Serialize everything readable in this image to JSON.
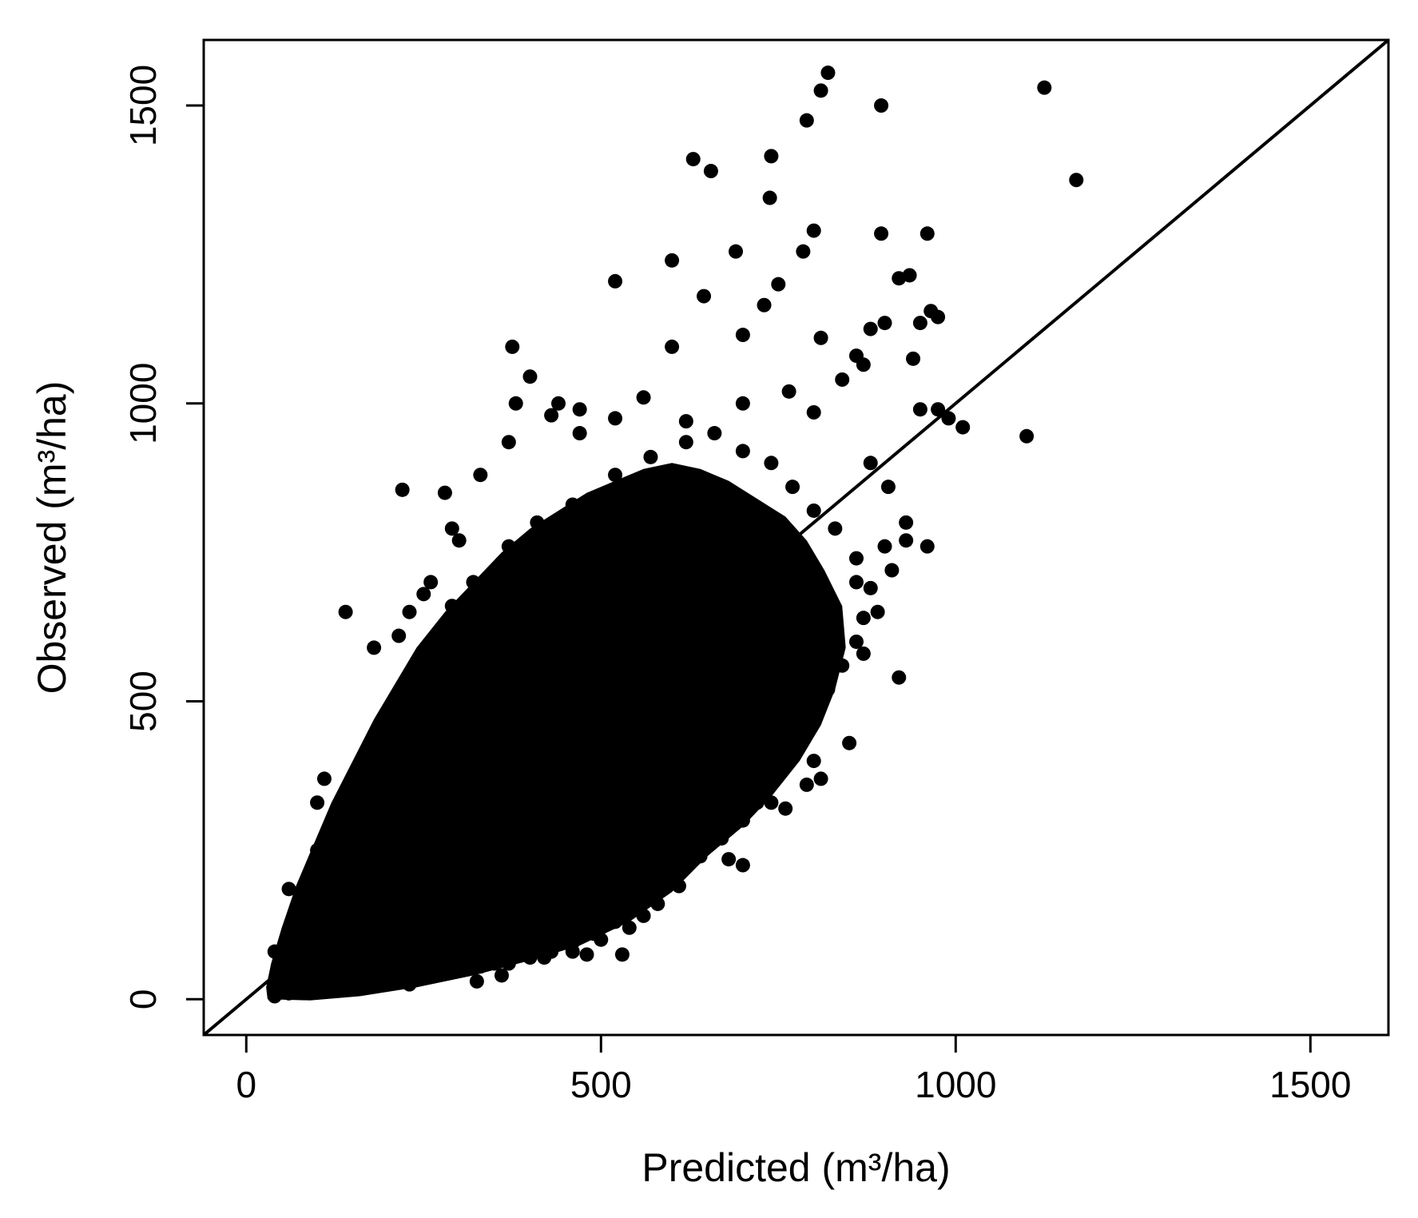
{
  "chart_data": {
    "type": "scatter",
    "title": "",
    "xlabel": "Predicted (m³/ha)",
    "ylabel": "Observed (m³/ha)",
    "xlim": [
      -60,
      1610
    ],
    "ylim": [
      -60,
      1610
    ],
    "xticks": [
      0,
      500,
      1000,
      1500
    ],
    "yticks": [
      0,
      500,
      1000,
      1500
    ],
    "xtick_labels": [
      "0",
      "500",
      "1000",
      "1500"
    ],
    "ytick_labels": [
      "0",
      "500",
      "1000",
      "1500"
    ],
    "grid": false,
    "legend": "none",
    "point_color": "#000000",
    "reference_line": {
      "type": "1:1",
      "slope": 1,
      "intercept": 0,
      "color": "#000000"
    },
    "series": [
      {
        "points": [
          [
            820,
            1555
          ],
          [
            810,
            1525
          ],
          [
            1125,
            1530
          ],
          [
            895,
            1500
          ],
          [
            790,
            1475
          ],
          [
            630,
            1410
          ],
          [
            655,
            1390
          ],
          [
            740,
            1415
          ],
          [
            1170,
            1375
          ],
          [
            738,
            1345
          ],
          [
            800,
            1290
          ],
          [
            895,
            1285
          ],
          [
            960,
            1285
          ],
          [
            690,
            1255
          ],
          [
            600,
            1240
          ],
          [
            785,
            1255
          ],
          [
            520,
            1205
          ],
          [
            645,
            1180
          ],
          [
            920,
            1210
          ],
          [
            935,
            1215
          ],
          [
            965,
            1155
          ],
          [
            975,
            1145
          ],
          [
            750,
            1200
          ],
          [
            730,
            1165
          ],
          [
            900,
            1135
          ],
          [
            950,
            1135
          ],
          [
            880,
            1125
          ],
          [
            375,
            1095
          ],
          [
            600,
            1095
          ],
          [
            700,
            1115
          ],
          [
            810,
            1110
          ],
          [
            870,
            1065
          ],
          [
            940,
            1075
          ],
          [
            400,
            1045
          ],
          [
            440,
            1000
          ],
          [
            380,
            1000
          ],
          [
            560,
            1010
          ],
          [
            765,
            1020
          ],
          [
            1010,
            960
          ],
          [
            1100,
            945
          ],
          [
            990,
            975
          ],
          [
            220,
            855
          ],
          [
            280,
            850
          ],
          [
            290,
            790
          ],
          [
            370,
            935
          ],
          [
            330,
            880
          ],
          [
            140,
            650
          ],
          [
            180,
            590
          ],
          [
            920,
            540
          ],
          [
            850,
            430
          ],
          [
            800,
            400
          ],
          [
            810,
            370
          ],
          [
            790,
            360
          ],
          [
            680,
            235
          ],
          [
            700,
            225
          ],
          [
            530,
            75
          ],
          [
            480,
            75
          ],
          [
            460,
            80
          ],
          [
            350,
            60
          ],
          [
            420,
            70
          ],
          [
            325,
            30
          ],
          [
            360,
            40
          ],
          [
            275,
            50
          ],
          [
            230,
            25
          ],
          [
            120,
            15
          ],
          [
            60,
            10
          ],
          [
            40,
            5
          ],
          [
            90,
            15
          ],
          [
            110,
            30
          ],
          [
            150,
            30
          ],
          [
            200,
            40
          ],
          [
            60,
            60
          ],
          [
            40,
            80
          ],
          [
            70,
            120
          ],
          [
            90,
            170
          ],
          [
            60,
            185
          ],
          [
            120,
            240
          ],
          [
            130,
            200
          ],
          [
            160,
            300
          ],
          [
            200,
            410
          ],
          [
            210,
            470
          ],
          [
            240,
            560
          ],
          [
            260,
            600
          ],
          [
            290,
            660
          ],
          [
            320,
            700
          ],
          [
            370,
            760
          ],
          [
            410,
            800
          ],
          [
            460,
            830
          ],
          [
            520,
            880
          ],
          [
            570,
            910
          ],
          [
            620,
            935
          ],
          [
            660,
            950
          ],
          [
            700,
            920
          ],
          [
            740,
            900
          ],
          [
            770,
            860
          ],
          [
            800,
            820
          ],
          [
            830,
            790
          ],
          [
            860,
            740
          ],
          [
            880,
            690
          ],
          [
            870,
            640
          ],
          [
            860,
            600
          ],
          [
            840,
            560
          ],
          [
            820,
            520
          ],
          [
            800,
            480
          ],
          [
            780,
            440
          ],
          [
            760,
            410
          ],
          [
            740,
            370
          ],
          [
            720,
            330
          ],
          [
            700,
            300
          ],
          [
            670,
            270
          ],
          [
            640,
            240
          ],
          [
            610,
            210
          ],
          [
            580,
            180
          ],
          [
            550,
            150
          ],
          [
            520,
            130
          ],
          [
            490,
            110
          ],
          [
            460,
            95
          ],
          [
            430,
            80
          ],
          [
            400,
            70
          ],
          [
            370,
            60
          ],
          [
            330,
            55
          ],
          [
            300,
            50
          ],
          [
            270,
            45
          ],
          [
            240,
            40
          ],
          [
            210,
            35
          ],
          [
            180,
            30
          ],
          [
            150,
            25
          ],
          [
            880,
            900
          ],
          [
            905,
            860
          ],
          [
            930,
            800
          ],
          [
            900,
            760
          ],
          [
            860,
            700
          ],
          [
            890,
            650
          ],
          [
            870,
            580
          ],
          [
            930,
            770
          ],
          [
            960,
            760
          ],
          [
            910,
            720
          ],
          [
            950,
            990
          ],
          [
            975,
            990
          ],
          [
            700,
            1000
          ],
          [
            800,
            985
          ],
          [
            840,
            1040
          ],
          [
            860,
            1080
          ],
          [
            620,
            970
          ],
          [
            520,
            975
          ],
          [
            470,
            990
          ],
          [
            470,
            950
          ],
          [
            430,
            980
          ],
          [
            300,
            770
          ],
          [
            260,
            700
          ],
          [
            250,
            680
          ],
          [
            230,
            650
          ],
          [
            215,
            610
          ],
          [
            250,
            520
          ],
          [
            280,
            580
          ],
          [
            100,
            250
          ],
          [
            110,
            260
          ],
          [
            140,
            280
          ],
          [
            160,
            320
          ],
          [
            180,
            340
          ],
          [
            100,
            330
          ],
          [
            110,
            370
          ],
          [
            720,
            350
          ],
          [
            740,
            330
          ],
          [
            760,
            320
          ],
          [
            640,
            250
          ],
          [
            620,
            230
          ],
          [
            650,
            260
          ],
          [
            600,
            200
          ],
          [
            610,
            190
          ],
          [
            560,
            140
          ],
          [
            540,
            120
          ],
          [
            500,
            100
          ],
          [
            580,
            160
          ],
          [
            590,
            190
          ]
        ]
      }
    ]
  }
}
